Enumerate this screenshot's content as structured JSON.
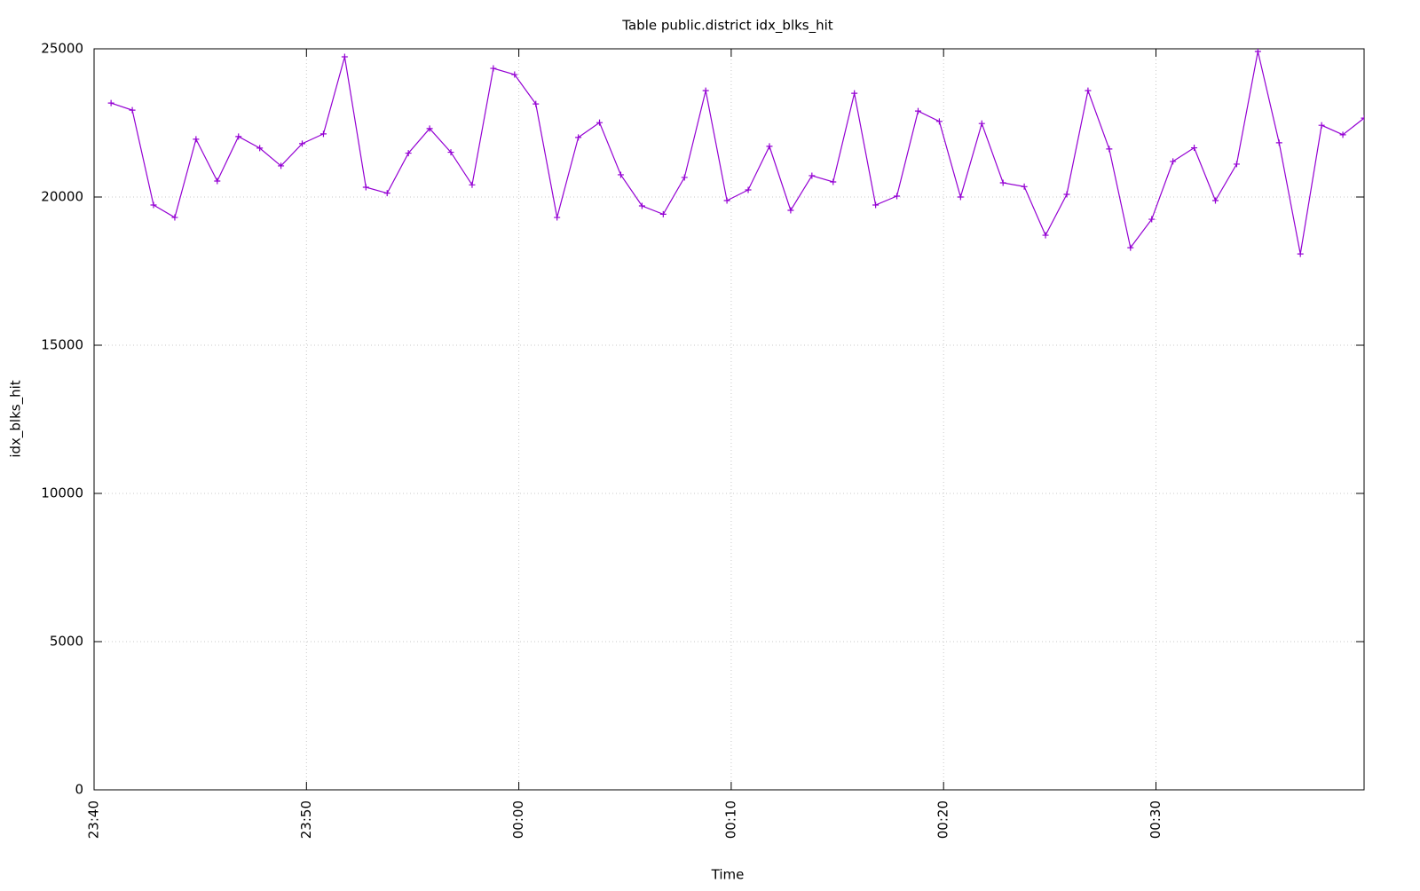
{
  "chart_data": {
    "type": "line",
    "title": "Table public.district idx_blks_hit",
    "x_label": "Time",
    "y_label": "idx_blks_hit",
    "x": [
      1420.8,
      1421.8,
      1422.8,
      1423.8,
      1424.8,
      1425.8,
      1426.8,
      1427.8,
      1428.8,
      1429.8,
      1430.8,
      1431.8,
      1432.8,
      1433.8,
      1434.8,
      1435.8,
      1436.8,
      1437.8,
      1438.8,
      1439.8,
      1440.8,
      1441.8,
      1442.8,
      1443.8,
      1444.8,
      1445.8,
      1446.8,
      1447.8,
      1448.8,
      1449.8,
      1450.8,
      1451.8,
      1452.8,
      1453.8,
      1454.8,
      1455.8,
      1456.8,
      1457.8,
      1458.8,
      1459.8,
      1460.8,
      1461.8,
      1462.8,
      1463.8,
      1464.8,
      1465.8,
      1466.8,
      1467.8,
      1468.8,
      1469.8,
      1470.8,
      1471.8,
      1472.8,
      1473.8,
      1474.8,
      1475.8,
      1476.8,
      1477.8,
      1478.8,
      1479.8
    ],
    "series": [
      {
        "name": "idx_blks_hit",
        "color": "#9400d3",
        "values": [
          23170,
          22930,
          19730,
          19310,
          21950,
          20540,
          22040,
          21650,
          21050,
          21800,
          22130,
          24730,
          20330,
          20130,
          21480,
          22310,
          21510,
          20410,
          24340,
          24130,
          23140,
          19310,
          22010,
          22510,
          20750,
          19700,
          19420,
          20660,
          23590,
          19880,
          20240,
          21710,
          19550,
          20720,
          20510,
          23500,
          19730,
          20030,
          22900,
          22550,
          20000,
          22480,
          20480,
          20350,
          18710,
          20090,
          23590,
          21620,
          18290,
          19250,
          21200,
          21660,
          19880,
          21110,
          24910,
          21830,
          18080,
          22420,
          22100,
          22660
        ]
      }
    ],
    "xlim": [
      1420,
      1479.8
    ],
    "xticks": [
      {
        "value": 1420,
        "label": "23:40"
      },
      {
        "value": 1430,
        "label": "23:50"
      },
      {
        "value": 1440,
        "label": "00:00"
      },
      {
        "value": 1450,
        "label": "00:10"
      },
      {
        "value": 1460,
        "label": "00:20"
      },
      {
        "value": 1470,
        "label": "00:30"
      }
    ],
    "ylim": [
      0,
      25000
    ],
    "yticks": [
      0,
      5000,
      10000,
      15000,
      20000,
      25000
    ],
    "grid": true
  }
}
